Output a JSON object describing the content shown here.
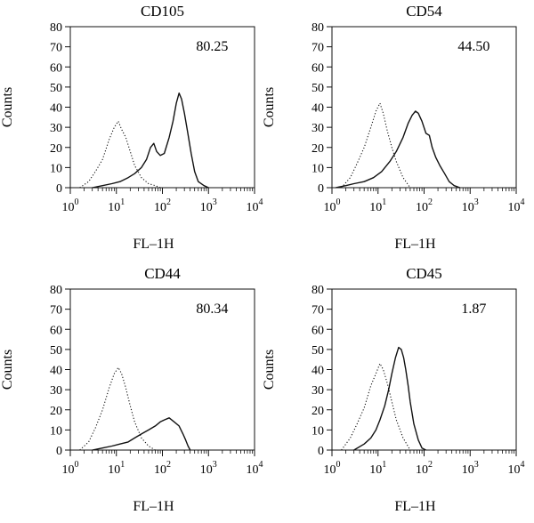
{
  "chart_data": [
    {
      "type": "line",
      "title": "CD105",
      "xlabel": "FL–1H",
      "ylabel": "Counts",
      "xscale": "log",
      "xlim": [
        1,
        10000
      ],
      "ylim": [
        0,
        80
      ],
      "yticks": [
        0,
        10,
        20,
        30,
        40,
        50,
        60,
        70,
        80
      ],
      "xtick_labels": [
        "10",
        "10",
        "10",
        "10",
        "10"
      ],
      "xtick_exponents": [
        "0",
        "1",
        "2",
        "3",
        "4"
      ],
      "annotation": "80.25",
      "series": [
        {
          "style": "dotted",
          "x": [
            1.6,
            2.5,
            3.5,
            5,
            7,
            9,
            11,
            13,
            16,
            20,
            25,
            35,
            50,
            70,
            90
          ],
          "y": [
            0,
            3,
            8,
            14,
            24,
            30,
            33,
            29,
            25,
            18,
            11,
            5,
            2,
            1,
            0
          ]
        },
        {
          "style": "solid",
          "x": [
            3,
            5,
            8,
            12,
            18,
            25,
            35,
            45,
            55,
            65,
            75,
            90,
            110,
            140,
            170,
            200,
            230,
            260,
            300,
            350,
            420,
            500,
            600,
            800,
            1000
          ],
          "y": [
            0,
            1,
            2,
            3,
            5,
            7,
            10,
            14,
            20,
            22,
            18,
            16,
            17,
            25,
            33,
            42,
            47,
            44,
            37,
            28,
            17,
            8,
            3,
            1,
            0
          ]
        }
      ]
    },
    {
      "type": "line",
      "title": "CD54",
      "xlabel": "FL–1H",
      "ylabel": "Counts",
      "xscale": "log",
      "xlim": [
        1,
        10000
      ],
      "ylim": [
        0,
        80
      ],
      "yticks": [
        0,
        10,
        20,
        30,
        40,
        50,
        60,
        70,
        80
      ],
      "xtick_labels": [
        "10",
        "10",
        "10",
        "10",
        "10"
      ],
      "xtick_exponents": [
        "0",
        "1",
        "2",
        "3",
        "4"
      ],
      "annotation": "44.50",
      "series": [
        {
          "style": "dotted",
          "x": [
            1.6,
            2.5,
            3.5,
            5,
            7,
            9,
            11,
            13,
            16,
            20,
            25,
            35,
            50
          ],
          "y": [
            0,
            5,
            12,
            20,
            30,
            38,
            42,
            37,
            28,
            20,
            13,
            5,
            0
          ]
        },
        {
          "style": "solid",
          "x": [
            1.2,
            2,
            3,
            5,
            8,
            12,
            18,
            25,
            35,
            45,
            55,
            65,
            75,
            90,
            110,
            130,
            150,
            180,
            220,
            280,
            350,
            450,
            600
          ],
          "y": [
            0,
            1,
            2,
            3,
            5,
            8,
            13,
            18,
            25,
            32,
            36,
            38,
            37,
            33,
            27,
            26,
            20,
            15,
            11,
            7,
            3,
            1,
            0
          ]
        }
      ]
    },
    {
      "type": "line",
      "title": "CD44",
      "xlabel": "FL–1H",
      "ylabel": "Counts",
      "xscale": "log",
      "xlim": [
        1,
        10000
      ],
      "ylim": [
        0,
        80
      ],
      "yticks": [
        0,
        10,
        20,
        30,
        40,
        50,
        60,
        70,
        80
      ],
      "xtick_labels": [
        "10",
        "10",
        "10",
        "10",
        "10"
      ],
      "xtick_exponents": [
        "0",
        "1",
        "2",
        "3",
        "4"
      ],
      "annotation": "80.34",
      "series": [
        {
          "style": "dotted",
          "x": [
            1.6,
            2.5,
            3.5,
            5,
            7,
            9,
            11,
            13,
            16,
            20,
            25,
            35,
            50,
            70
          ],
          "y": [
            0,
            4,
            11,
            20,
            31,
            38,
            41,
            38,
            31,
            22,
            14,
            6,
            2,
            0
          ]
        },
        {
          "style": "solid",
          "x": [
            3,
            5,
            8,
            12,
            18,
            25,
            35,
            50,
            70,
            90,
            110,
            140,
            180,
            230,
            280,
            320,
            360,
            400
          ],
          "y": [
            0,
            1,
            2,
            3,
            4,
            6,
            8,
            10,
            12,
            14,
            15,
            16,
            14,
            12,
            8,
            5,
            2,
            0
          ]
        }
      ]
    },
    {
      "type": "line",
      "title": "CD45",
      "xlabel": "FL–1H",
      "ylabel": "Counts",
      "xscale": "log",
      "xlim": [
        1,
        10000
      ],
      "ylim": [
        0,
        80
      ],
      "yticks": [
        0,
        10,
        20,
        30,
        40,
        50,
        60,
        70,
        80
      ],
      "xtick_labels": [
        "10",
        "10",
        "10",
        "10",
        "10"
      ],
      "xtick_exponents": [
        "0",
        "1",
        "2",
        "3",
        "4"
      ],
      "annotation": "1.87",
      "series": [
        {
          "style": "dotted",
          "x": [
            1.6,
            2.5,
            3.5,
            5,
            7,
            9,
            11,
            13,
            16,
            20,
            25,
            35,
            50
          ],
          "y": [
            0,
            6,
            13,
            21,
            32,
            38,
            43,
            40,
            33,
            24,
            15,
            6,
            0
          ]
        },
        {
          "style": "solid",
          "x": [
            3,
            5,
            7,
            9,
            11,
            14,
            17,
            20,
            24,
            28,
            32,
            36,
            40,
            45,
            50,
            60,
            75,
            90,
            110
          ],
          "y": [
            0,
            3,
            6,
            10,
            15,
            22,
            30,
            38,
            46,
            51,
            50,
            46,
            40,
            32,
            24,
            13,
            5,
            1,
            0
          ]
        }
      ]
    }
  ]
}
